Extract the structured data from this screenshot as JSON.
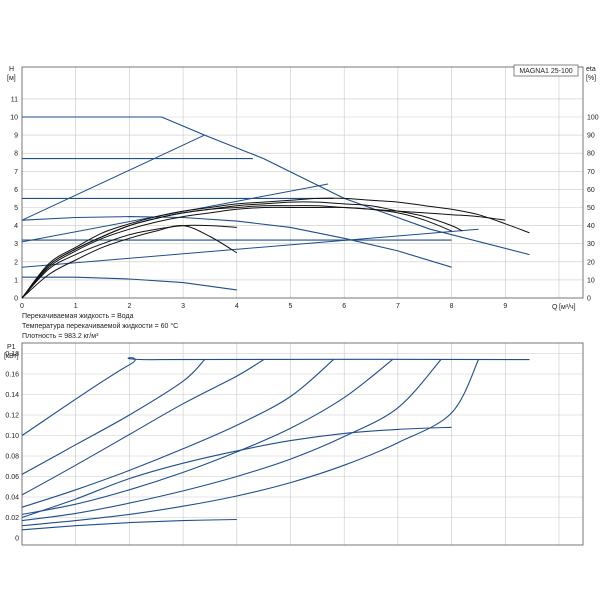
{
  "model_label": "MAGNA1 25-100",
  "notes": [
    "Перекачиваемая жидкость = Вода",
    "Температура перекачиваемой жидкости = 60 °C",
    "Плотность = 983.2 кг/м³"
  ],
  "colors": {
    "curve_blue": "#1f4e8c",
    "curve_black": "#111111",
    "grid": "#c9c9c9"
  },
  "chart_data": [
    {
      "type": "line",
      "yaxis_title": "H",
      "yaxis_unit": "[м]",
      "y2axis_title": "eta",
      "y2axis_unit": "[%]",
      "xaxis_title": "Q",
      "xaxis_unit": "[м³/ч]",
      "xlim": [
        0,
        10
      ],
      "ylim": [
        0,
        12
      ],
      "y2lim": [
        0,
        120
      ],
      "xticks": [
        "0",
        "1",
        "2",
        "3",
        "4",
        "5",
        "6",
        "7",
        "8",
        "9"
      ],
      "yticks": [
        "0",
        "1",
        "2",
        "3",
        "4",
        "5",
        "6",
        "7",
        "8",
        "9",
        "10",
        "11"
      ],
      "y2ticks": [
        "0",
        "10",
        "20",
        "30",
        "40",
        "50",
        "60",
        "70",
        "80",
        "90",
        "100"
      ],
      "grid": true,
      "series_head": [
        {
          "x": [
            0,
            2.6,
            3.4,
            4.5,
            6.0,
            7.6,
            9.45
          ],
          "y": [
            10,
            10,
            9.0,
            7.7,
            5.5,
            3.8,
            2.4
          ]
        },
        {
          "x": [
            0,
            4.3
          ],
          "y": [
            7.7,
            7.7
          ]
        },
        {
          "x": [
            0,
            5.8
          ],
          "y": [
            5.5,
            5.5
          ]
        },
        {
          "x": [
            0,
            8.0
          ],
          "y": [
            3.2,
            3.2
          ]
        },
        {
          "x": [
            0,
            1,
            2,
            3,
            4,
            5,
            6,
            7,
            8
          ],
          "y": [
            4.3,
            4.45,
            4.5,
            4.45,
            4.25,
            3.9,
            3.3,
            2.6,
            1.7
          ]
        },
        {
          "x": [
            0,
            1,
            2,
            3,
            4
          ],
          "y": [
            1.15,
            1.15,
            1.05,
            0.85,
            0.45
          ]
        }
      ],
      "series_system": [
        {
          "x": [
            0,
            3.4
          ],
          "y": [
            4.3,
            9.0
          ]
        },
        {
          "x": [
            0,
            5.7
          ],
          "y": [
            3.1,
            6.3
          ]
        },
        {
          "x": [
            0,
            8.5
          ],
          "y": [
            1.7,
            3.8
          ]
        }
      ],
      "series_eta": [
        {
          "x": [
            0,
            0.5,
            1,
            1.5,
            2,
            2.5,
            3,
            3.5,
            4,
            4.5,
            5,
            5.5,
            6,
            6.5,
            7,
            7.5,
            8,
            8.5,
            9,
            9.45
          ],
          "y": [
            0,
            19,
            28,
            36,
            41,
            45,
            48,
            50,
            52,
            53,
            54,
            55,
            55,
            54,
            53,
            51,
            49,
            46,
            41,
            36
          ]
        },
        {
          "x": [
            0,
            0.5,
            1,
            1.5,
            2,
            2.5,
            3,
            3.5,
            4,
            4.5,
            5,
            5.5,
            6,
            6.5,
            7,
            7.5,
            8,
            8.2
          ],
          "y": [
            0,
            18,
            27,
            34,
            40,
            44,
            47,
            49,
            51,
            52,
            53,
            53,
            52,
            51,
            48,
            45,
            40,
            37
          ]
        },
        {
          "x": [
            0,
            0.5,
            1,
            1.5,
            2,
            2.5,
            3,
            3.5,
            4,
            4.5,
            5,
            5.5,
            6,
            6.5,
            7,
            7.5,
            8
          ],
          "y": [
            0,
            17,
            26,
            33,
            38,
            42,
            45,
            47,
            49,
            50,
            50,
            50,
            50,
            49,
            47,
            43,
            37
          ]
        },
        {
          "x": [
            0,
            0.5,
            1,
            1.5,
            2,
            2.5,
            3,
            3.5,
            4,
            4.5,
            5,
            5.5,
            6,
            6.5,
            7,
            7.5,
            8,
            8.5,
            9
          ],
          "y": [
            0,
            18,
            27,
            34,
            40,
            44,
            47,
            49,
            50,
            51,
            51,
            51,
            50,
            49,
            48,
            47,
            46,
            45,
            43
          ]
        },
        {
          "x": [
            0,
            0.5,
            1,
            1.5,
            2,
            2.5,
            3,
            3.5,
            4
          ],
          "y": [
            0,
            13,
            21,
            28,
            33,
            37,
            40,
            34,
            25
          ]
        },
        {
          "x": [
            0,
            0.5,
            1,
            1.5,
            2,
            2.5,
            3,
            3.5,
            4
          ],
          "y": [
            0,
            16,
            24,
            30,
            35,
            38,
            40,
            40,
            39
          ]
        }
      ]
    },
    {
      "type": "line",
      "yaxis_title": "P1",
      "yaxis_unit": "[кВт]",
      "xlim": [
        0,
        10
      ],
      "ylim": [
        0,
        0.19
      ],
      "yticks": [
        "0",
        "0.02",
        "0.04",
        "0.06",
        "0.08",
        "0.10",
        "0.12",
        "0.14",
        "0.16",
        "0.18"
      ],
      "grid": true,
      "series": [
        {
          "x": [
            0,
            2.0,
            2.6,
            9.45
          ],
          "y": [
            0.1,
            0.169,
            0.174,
            0.174
          ]
        },
        {
          "x": [
            0,
            1,
            2,
            3,
            3.4
          ],
          "y": [
            0.062,
            0.091,
            0.12,
            0.153,
            0.174
          ]
        },
        {
          "x": [
            0,
            1,
            2,
            3,
            4,
            4.5
          ],
          "y": [
            0.042,
            0.071,
            0.101,
            0.131,
            0.158,
            0.174
          ]
        },
        {
          "x": [
            0,
            1,
            2,
            3,
            4,
            5,
            5.8
          ],
          "y": [
            0.03,
            0.047,
            0.066,
            0.087,
            0.11,
            0.138,
            0.174
          ]
        },
        {
          "x": [
            0,
            1,
            2,
            3,
            4,
            5,
            6,
            6.9
          ],
          "y": [
            0.023,
            0.033,
            0.047,
            0.064,
            0.084,
            0.107,
            0.137,
            0.174
          ]
        },
        {
          "x": [
            0,
            1,
            2,
            3,
            4,
            5,
            6,
            7,
            7.8
          ],
          "y": [
            0.017,
            0.024,
            0.034,
            0.046,
            0.06,
            0.077,
            0.099,
            0.127,
            0.174
          ]
        },
        {
          "x": [
            0,
            1,
            2,
            3,
            4,
            5,
            6,
            7,
            8,
            8.5
          ],
          "y": [
            0.012,
            0.017,
            0.023,
            0.031,
            0.041,
            0.054,
            0.071,
            0.093,
            0.122,
            0.174
          ]
        },
        {
          "x": [
            0,
            1,
            2,
            3,
            4,
            5,
            6,
            7,
            8
          ],
          "y": [
            0.02,
            0.038,
            0.058,
            0.073,
            0.085,
            0.095,
            0.102,
            0.106,
            0.108
          ]
        },
        {
          "x": [
            0,
            1,
            2,
            3,
            4
          ],
          "y": [
            0.008,
            0.012,
            0.015,
            0.017,
            0.018
          ]
        }
      ]
    }
  ]
}
